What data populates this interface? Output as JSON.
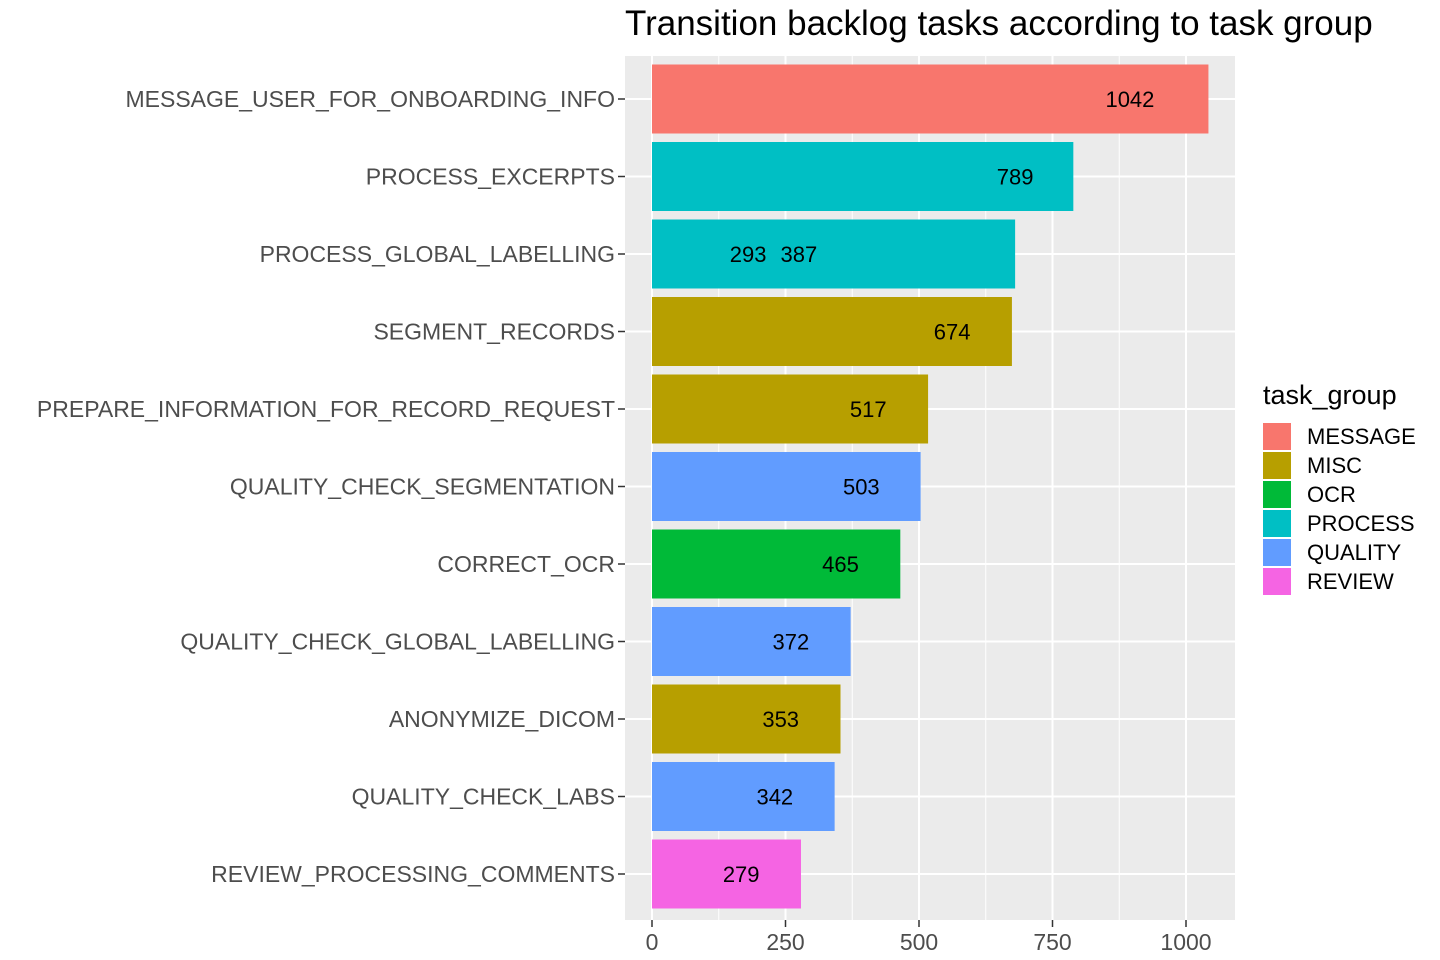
{
  "chart_data": {
    "type": "bar",
    "orientation": "horizontal",
    "title": "Transition backlog tasks according to task group",
    "xlabel": "",
    "ylabel": "",
    "xlim": [
      0,
      1050
    ],
    "x_ticks": [
      0,
      250,
      500,
      750,
      1000
    ],
    "grid": true,
    "legend_position": "right",
    "legend_title": "task_group",
    "groups": [
      {
        "name": "MESSAGE",
        "color": "#F8766D"
      },
      {
        "name": "MISC",
        "color": "#B79F00"
      },
      {
        "name": "OCR",
        "color": "#00BA38"
      },
      {
        "name": "PROCESS",
        "color": "#00BFC4"
      },
      {
        "name": "QUALITY",
        "color": "#619CFF"
      },
      {
        "name": "REVIEW",
        "color": "#F564E3"
      }
    ],
    "bars": [
      {
        "category": "MESSAGE_USER_FOR_ONBOARDING_INFO",
        "value": 1042,
        "group": "MESSAGE",
        "labels": [
          {
            "text": "1042",
            "x": 895
          }
        ]
      },
      {
        "category": "PROCESS_EXCERPTS",
        "value": 789,
        "group": "PROCESS",
        "labels": [
          {
            "text": "789",
            "x": 680
          }
        ]
      },
      {
        "category": "PROCESS_GLOBAL_LABELLING",
        "value": 680,
        "group": "PROCESS",
        "labels": [
          {
            "text": "293",
            "x": 180
          },
          {
            "text": "387",
            "x": 275
          }
        ]
      },
      {
        "category": "SEGMENT_RECORDS",
        "value": 674,
        "group": "MISC",
        "labels": [
          {
            "text": "674",
            "x": 562
          }
        ]
      },
      {
        "category": "PREPARE_INFORMATION_FOR_RECORD_REQUEST",
        "value": 517,
        "group": "MISC",
        "labels": [
          {
            "text": "517",
            "x": 405
          }
        ]
      },
      {
        "category": "QUALITY_CHECK_SEGMENTATION",
        "value": 503,
        "group": "QUALITY",
        "labels": [
          {
            "text": "503",
            "x": 392
          }
        ]
      },
      {
        "category": "CORRECT_OCR",
        "value": 465,
        "group": "OCR",
        "labels": [
          {
            "text": "465",
            "x": 353
          }
        ]
      },
      {
        "category": "QUALITY_CHECK_GLOBAL_LABELLING",
        "value": 372,
        "group": "QUALITY",
        "labels": [
          {
            "text": "372",
            "x": 260
          }
        ]
      },
      {
        "category": "ANONYMIZE_DICOM",
        "value": 353,
        "group": "MISC",
        "labels": [
          {
            "text": "353",
            "x": 241
          }
        ]
      },
      {
        "category": "QUALITY_CHECK_LABS",
        "value": 342,
        "group": "QUALITY",
        "labels": [
          {
            "text": "342",
            "x": 230
          }
        ]
      },
      {
        "category": "REVIEW_PROCESSING_COMMENTS",
        "value": 279,
        "group": "REVIEW",
        "labels": [
          {
            "text": "279",
            "x": 167
          }
        ]
      }
    ]
  }
}
